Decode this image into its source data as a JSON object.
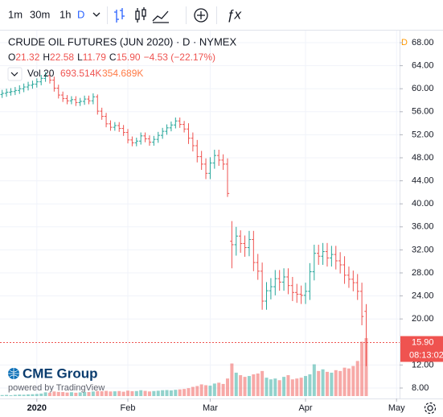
{
  "toolbar": {
    "intervals": [
      "1m",
      "30m",
      "1h",
      "D"
    ]
  },
  "chart_data": {
    "type": "ohlc",
    "title": "CRUDE OIL FUTURES (JUN 2020) · D · NYMEX",
    "legend": [
      {
        "label": "O",
        "value": "21.32"
      },
      {
        "label": "H",
        "value": "22.58"
      },
      {
        "label": "L",
        "value": "11.79"
      },
      {
        "label": "C",
        "value": "15.90"
      }
    ],
    "change": "−4.53 (−22.17%)",
    "volume_legend": {
      "name": "Vol 20",
      "value": "693.514K",
      "ma": "354.689K"
    },
    "interval_marker": "D",
    "x": [
      -8,
      -7,
      -6,
      -5,
      -4,
      -3,
      -2,
      -1,
      0,
      1,
      2,
      3,
      4,
      5,
      6,
      7,
      8,
      9,
      10,
      11,
      12,
      13,
      14,
      15,
      16,
      17,
      18,
      19,
      20,
      21,
      22,
      23,
      24,
      25,
      26,
      27,
      28,
      29,
      30,
      31,
      32,
      33,
      34,
      35,
      36,
      37,
      38,
      39,
      40,
      41,
      42,
      43,
      44,
      45,
      46,
      47,
      48,
      49,
      50,
      51,
      52,
      53,
      54,
      55,
      56,
      57,
      58,
      59,
      60,
      61,
      62,
      63,
      64,
      65,
      66,
      67,
      68,
      69,
      70,
      71,
      72,
      73,
      74,
      75,
      76
    ],
    "open": [
      59.0,
      59.2,
      59.4,
      59.5,
      59.7,
      60.0,
      60.3,
      60.6,
      60.8,
      61.2,
      61.8,
      62.3,
      61.5,
      60.1,
      58.9,
      58.3,
      57.9,
      58.1,
      57.6,
      57.8,
      58.2,
      57.9,
      58.6,
      56.1,
      55.2,
      53.9,
      53.3,
      53.6,
      53.1,
      52.4,
      51.1,
      50.6,
      50.9,
      51.8,
      51.3,
      50.7,
      51.2,
      51.9,
      52.6,
      53.2,
      53.7,
      54.4,
      53.8,
      53.0,
      51.4,
      50.1,
      48.2,
      46.9,
      45.3,
      47.1,
      48.4,
      47.6,
      46.9,
      33.5,
      32.9,
      34.4,
      33.1,
      32.4,
      33.8,
      29.8,
      28.3,
      23.1,
      24.9,
      25.6,
      27.0,
      26.4,
      27.3,
      25.8,
      24.6,
      24.3,
      24.1,
      24.8,
      28.2,
      31.4,
      30.9,
      31.7,
      30.6,
      31.2,
      30.1,
      29.4,
      27.6,
      26.9,
      26.3,
      24.8,
      21.32
    ],
    "high": [
      59.8,
      60.0,
      60.1,
      60.3,
      60.6,
      60.9,
      61.2,
      61.4,
      61.8,
      62.4,
      62.9,
      63.0,
      62.1,
      60.7,
      59.5,
      58.9,
      58.7,
      58.7,
      58.4,
      58.8,
      58.8,
      59.2,
      59.0,
      56.7,
      55.8,
      54.5,
      54.2,
      54.2,
      53.7,
      53.0,
      51.7,
      51.5,
      52.4,
      52.4,
      51.9,
      51.8,
      52.5,
      53.2,
      53.8,
      54.3,
      55.0,
      55.0,
      54.4,
      54.0,
      52.4,
      51.1,
      49.2,
      47.9,
      48.1,
      49.4,
      49.4,
      48.6,
      47.9,
      37.0,
      36.0,
      35.4,
      34.5,
      35.3,
      35.3,
      31.3,
      29.8,
      26.4,
      27.1,
      28.5,
      28.5,
      28.8,
      28.8,
      27.3,
      26.1,
      25.8,
      26.3,
      29.7,
      32.9,
      32.9,
      33.2,
      33.2,
      32.7,
      32.7,
      31.6,
      30.9,
      29.1,
      28.4,
      27.8,
      26.3,
      22.58
    ],
    "low": [
      58.4,
      58.6,
      58.8,
      58.9,
      59.1,
      59.4,
      59.7,
      60.0,
      60.2,
      60.6,
      61.2,
      60.9,
      59.5,
      58.3,
      57.7,
      57.3,
      57.3,
      57.0,
      57.0,
      57.2,
      57.3,
      57.3,
      55.5,
      54.6,
      53.3,
      52.7,
      52.7,
      52.5,
      51.8,
      50.5,
      50.0,
      50.0,
      50.3,
      50.7,
      50.1,
      50.1,
      50.6,
      51.3,
      52.0,
      52.6,
      53.1,
      53.2,
      52.4,
      50.4,
      49.1,
      47.2,
      45.9,
      44.3,
      44.3,
      46.1,
      46.6,
      45.9,
      41.2,
      28.8,
      31.0,
      31.5,
      30.8,
      30.9,
      28.3,
      26.8,
      21.6,
      21.6,
      23.4,
      24.1,
      24.9,
      24.9,
      24.3,
      23.1,
      22.8,
      22.6,
      22.6,
      23.3,
      26.7,
      29.4,
      29.4,
      29.1,
      29.1,
      28.6,
      27.9,
      26.1,
      25.4,
      24.8,
      23.3,
      18.9,
      11.79
    ],
    "close": [
      59.2,
      59.4,
      59.5,
      59.7,
      60.0,
      60.3,
      60.6,
      60.8,
      61.2,
      61.8,
      62.3,
      61.5,
      60.1,
      58.9,
      58.3,
      57.9,
      58.1,
      57.6,
      57.8,
      58.2,
      57.9,
      58.6,
      56.1,
      55.2,
      53.9,
      53.3,
      53.6,
      53.1,
      52.4,
      51.1,
      50.6,
      50.9,
      51.8,
      51.3,
      50.7,
      51.2,
      51.9,
      52.6,
      53.2,
      53.7,
      54.4,
      53.8,
      53.0,
      51.4,
      50.1,
      48.2,
      46.9,
      45.3,
      47.1,
      48.4,
      47.6,
      46.9,
      41.8,
      32.9,
      34.4,
      33.1,
      32.4,
      33.8,
      29.8,
      28.3,
      23.1,
      24.9,
      25.6,
      27.0,
      26.4,
      27.3,
      25.8,
      24.6,
      24.3,
      24.1,
      24.8,
      28.2,
      31.4,
      30.9,
      31.7,
      30.6,
      31.2,
      30.1,
      29.4,
      27.6,
      26.9,
      26.3,
      24.8,
      20.43,
      15.9
    ],
    "volume": [
      12,
      14,
      10,
      15,
      18,
      16,
      20,
      22,
      25,
      30,
      45,
      40,
      55,
      50,
      48,
      42,
      46,
      40,
      44,
      50,
      48,
      55,
      60,
      58,
      62,
      55,
      57,
      60,
      52,
      65,
      58,
      60,
      70,
      62,
      55,
      60,
      64,
      70,
      72,
      68,
      75,
      80,
      85,
      95,
      110,
      120,
      140,
      130,
      125,
      150,
      160,
      145,
      210,
      390,
      280,
      250,
      230,
      240,
      260,
      270,
      300,
      220,
      200,
      210,
      190,
      230,
      250,
      200,
      210,
      220,
      240,
      260,
      380,
      300,
      320,
      290,
      280,
      310,
      300,
      340,
      330,
      360,
      420,
      650,
      693.514
    ],
    "up_color": "#26a69a",
    "down_color": "#ef5350",
    "ylim": [
      6.18,
      70.1
    ],
    "yticks": [
      {
        "value": 68,
        "label": "68.00"
      },
      {
        "value": 64,
        "label": "64.00"
      },
      {
        "value": 60,
        "label": "60.00"
      },
      {
        "value": 56,
        "label": "56.00"
      },
      {
        "value": 52,
        "label": "52.00"
      },
      {
        "value": 48,
        "label": "48.00"
      },
      {
        "value": 44,
        "label": "44.00"
      },
      {
        "value": 40,
        "label": "40.00"
      },
      {
        "value": 36,
        "label": "36.00"
      },
      {
        "value": 32,
        "label": "32.00"
      },
      {
        "value": 28,
        "label": "28.00"
      },
      {
        "value": 24,
        "label": "24.00"
      },
      {
        "value": 20,
        "label": "20.00"
      },
      {
        "value": 12,
        "label": "12.00"
      },
      {
        "value": 8,
        "label": "8.00"
      }
    ],
    "xlim": [
      -8.5,
      83.7
    ],
    "xticks": [
      {
        "value": 0,
        "label": "2020"
      },
      {
        "value": 21,
        "label": "Feb"
      },
      {
        "value": 40,
        "label": "Mar"
      },
      {
        "value": 62,
        "label": "Apr"
      },
      {
        "value": 83,
        "label": "May"
      }
    ],
    "last_price": {
      "value": 15.9,
      "label": "15.90"
    },
    "countdown": "08:13:02",
    "grid": true
  },
  "branding": {
    "logo": "CME Group",
    "powered": "powered by TradingView"
  }
}
